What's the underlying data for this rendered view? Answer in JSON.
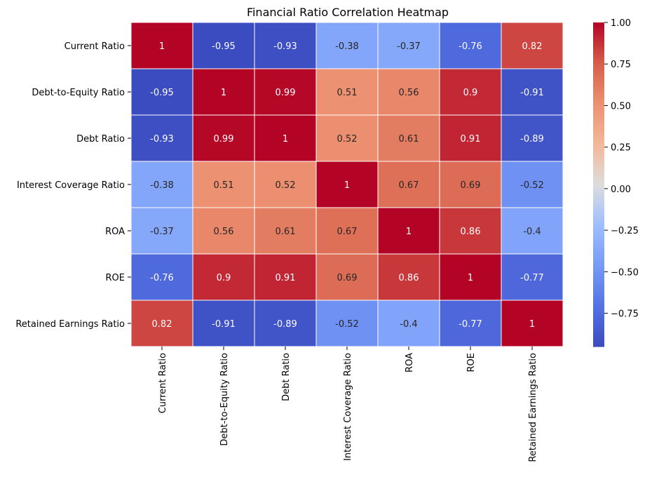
{
  "chart_data": {
    "type": "heatmap",
    "title": "Financial Ratio Correlation Heatmap",
    "xlabel": "",
    "ylabel": "",
    "row_labels": [
      "Current Ratio",
      "Debt-to-Equity Ratio",
      "Debt Ratio",
      "Interest Coverage Ratio",
      "ROA",
      "ROE",
      "Retained Earnings Ratio"
    ],
    "col_labels": [
      "Current Ratio",
      "Debt-to-Equity Ratio",
      "Debt Ratio",
      "Interest Coverage Ratio",
      "ROA",
      "ROE",
      "Retained Earnings Ratio"
    ],
    "values": [
      [
        1,
        -0.95,
        -0.93,
        -0.38,
        -0.37,
        -0.76,
        0.82
      ],
      [
        -0.95,
        1,
        0.99,
        0.51,
        0.56,
        0.9,
        -0.91
      ],
      [
        -0.93,
        0.99,
        1,
        0.52,
        0.61,
        0.91,
        -0.89
      ],
      [
        -0.38,
        0.51,
        0.52,
        1,
        0.67,
        0.69,
        -0.52
      ],
      [
        -0.37,
        0.56,
        0.61,
        0.67,
        1,
        0.86,
        -0.4
      ],
      [
        -0.76,
        0.9,
        0.91,
        0.69,
        0.86,
        1,
        -0.77
      ],
      [
        0.82,
        -0.91,
        -0.89,
        -0.52,
        -0.4,
        -0.77,
        1
      ]
    ],
    "colormap": "coolwarm",
    "vmin": -0.95,
    "vmax": 1.0,
    "colorbar_ticks": [
      "1.00",
      "0.75",
      "0.50",
      "0.25",
      "0.00",
      "−0.25",
      "−0.50",
      "−0.75"
    ],
    "colorbar_tick_values": [
      1.0,
      0.75,
      0.5,
      0.25,
      0.0,
      -0.25,
      -0.5,
      -0.75
    ],
    "annotated": true,
    "grid": false,
    "cell_border_color": "#ffffff"
  }
}
